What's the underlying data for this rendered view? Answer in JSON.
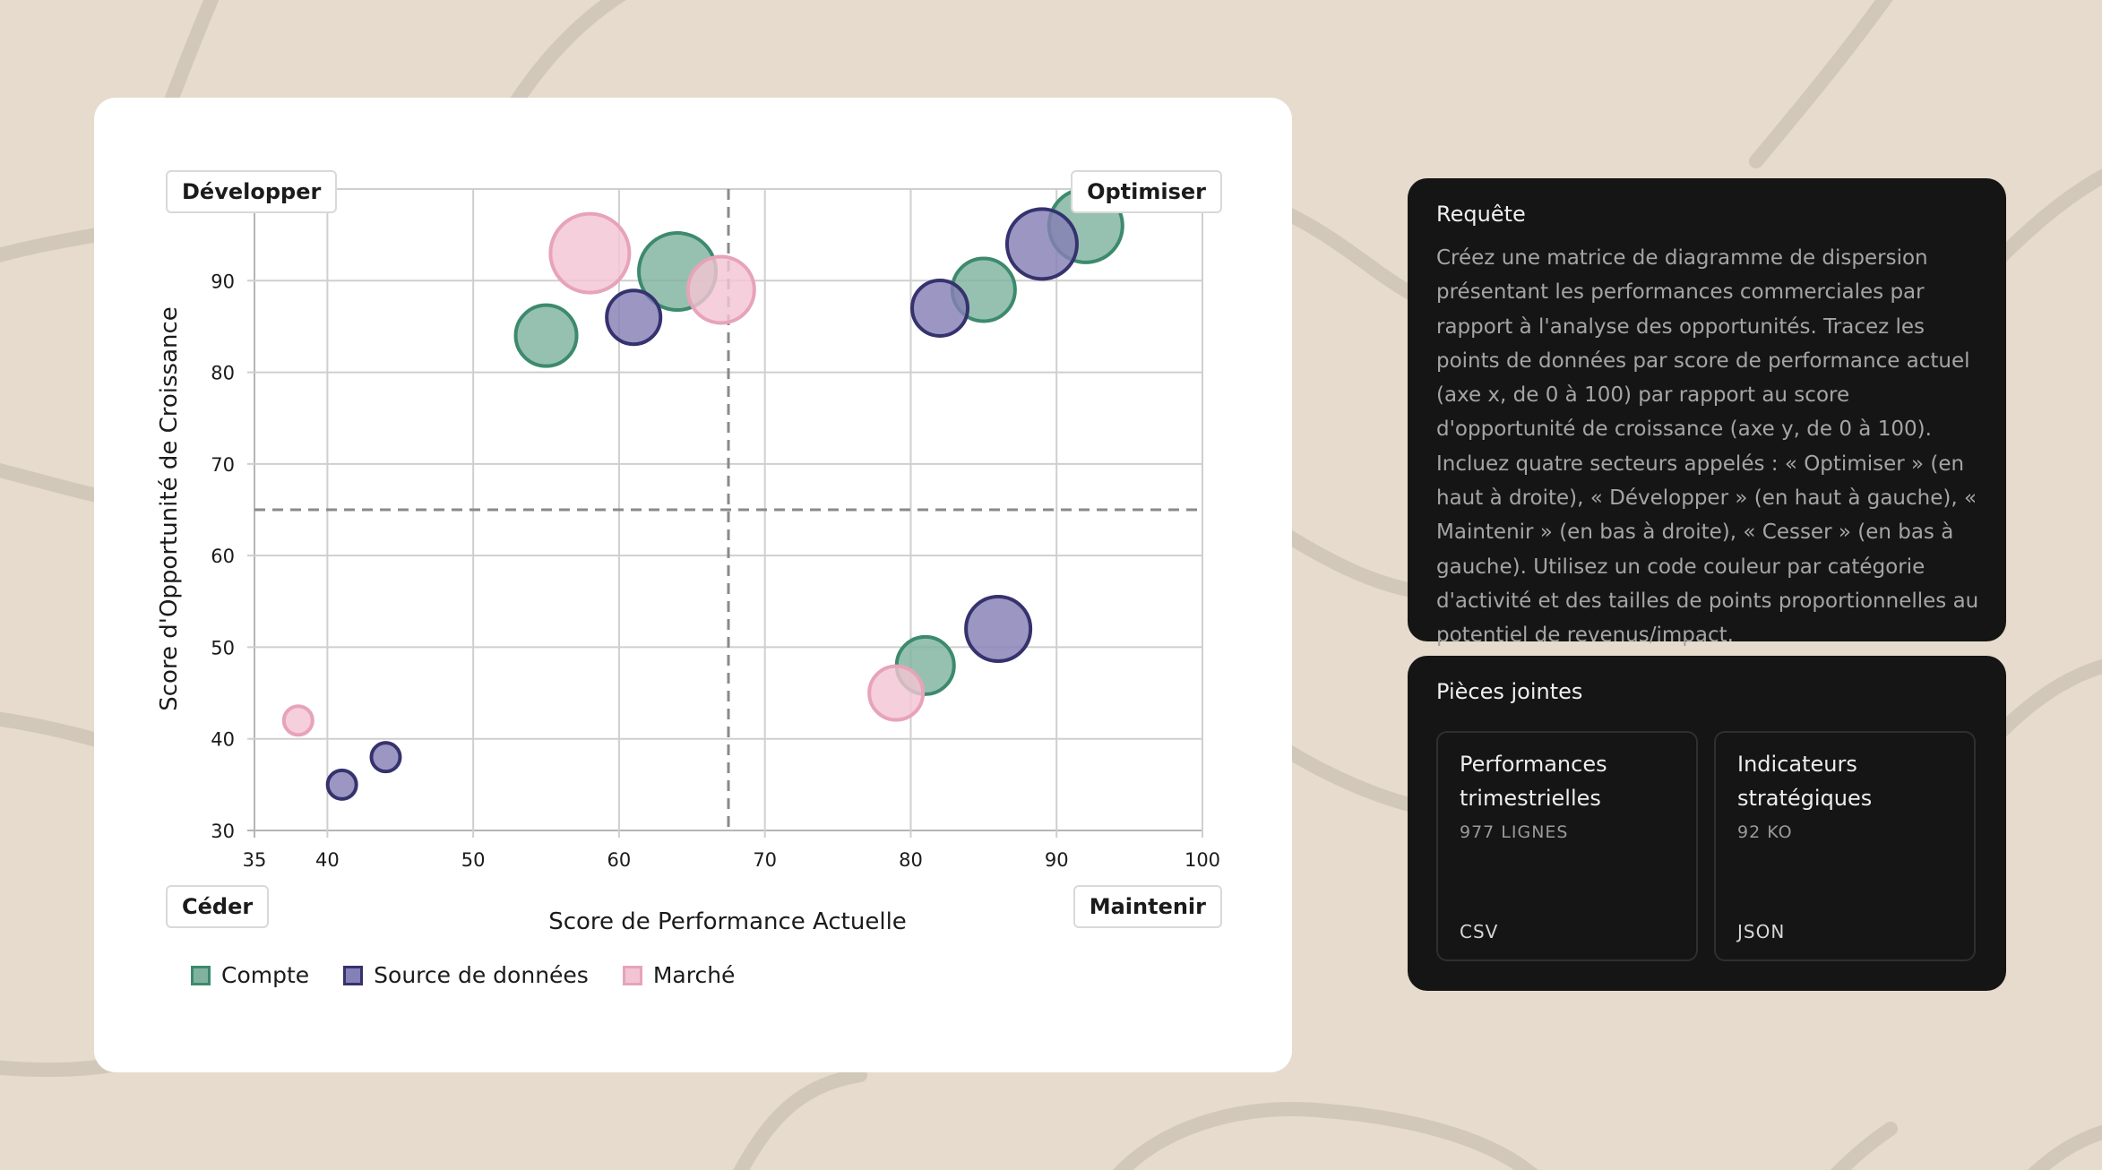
{
  "chart_data": {
    "type": "scatter",
    "xlabel": "Score de Performance Actuelle",
    "ylabel": "Score d'Opportunité de Croissance",
    "xlim": [
      35,
      100
    ],
    "ylim": [
      30,
      100
    ],
    "xticks": [
      35,
      40,
      50,
      60,
      70,
      80,
      90,
      100
    ],
    "yticks": [
      30,
      40,
      50,
      60,
      70,
      80,
      90
    ],
    "grid": true,
    "thresholds": {
      "x": 67.5,
      "y": 65
    },
    "quadrants": {
      "top_left": "Développer",
      "top_right": "Optimiser",
      "bottom_left": "Céder",
      "bottom_right": "Maintenir"
    },
    "legend_position": "bottom-left",
    "series": [
      {
        "name": "Compte",
        "fill": "#7fb3a0",
        "stroke": "#3d8a6e",
        "points": [
          {
            "x": 55,
            "y": 84,
            "size": 34
          },
          {
            "x": 64,
            "y": 91,
            "size": 43
          },
          {
            "x": 85,
            "y": 89,
            "size": 35
          },
          {
            "x": 92,
            "y": 96,
            "size": 41
          },
          {
            "x": 81,
            "y": 48,
            "size": 32
          }
        ]
      },
      {
        "name": "Source de données",
        "fill": "#8580b5",
        "stroke": "#35326e",
        "points": [
          {
            "x": 61,
            "y": 86,
            "size": 30
          },
          {
            "x": 82,
            "y": 87,
            "size": 31
          },
          {
            "x": 89,
            "y": 94,
            "size": 39
          },
          {
            "x": 86,
            "y": 52,
            "size": 36
          },
          {
            "x": 41,
            "y": 35,
            "size": 16
          },
          {
            "x": 44,
            "y": 38,
            "size": 16
          }
        ]
      },
      {
        "name": "Marché",
        "fill": "#f3c4d3",
        "stroke": "#e7a3ba",
        "points": [
          {
            "x": 58,
            "y": 93,
            "size": 44
          },
          {
            "x": 67,
            "y": 89,
            "size": 37
          },
          {
            "x": 79,
            "y": 45,
            "size": 30
          },
          {
            "x": 38,
            "y": 42,
            "size": 16
          }
        ]
      }
    ]
  },
  "request": {
    "title": "Requête",
    "text": "Créez une matrice de diagramme de dispersion présentant les performances commerciales par rapport à l'analyse des opportunités. Tracez les points de données par score de performance actuel (axe x, de 0 à 100) par rapport au score d'opportunité de croissance (axe y, de 0 à 100). Incluez quatre secteurs appelés : « Optimiser » (en haut à droite), « Développer » (en haut à gauche), « Maintenir » (en bas à droite), « Cesser » (en bas à gauche). Utilisez un code couleur par catégorie d'activité et des tailles de points proportionnelles au potentiel de revenus/impact."
  },
  "attachments": {
    "title": "Pièces jointes",
    "items": [
      {
        "name": "Performances trimestrielles",
        "meta": "977 LIGNES",
        "type": "CSV"
      },
      {
        "name": "Indicateurs stratégiques",
        "meta": "92 KO",
        "type": "JSON"
      }
    ]
  }
}
